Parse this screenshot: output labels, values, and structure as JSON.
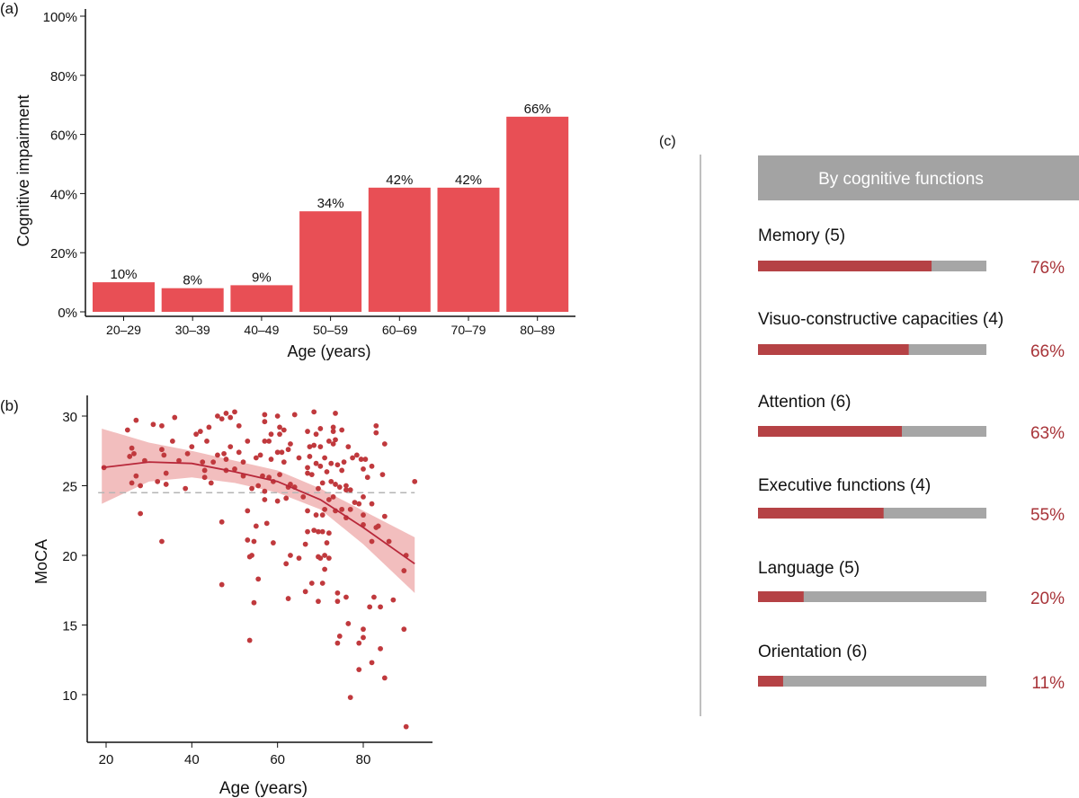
{
  "chart_data": [
    {
      "panel_label": "(a)",
      "type": "bar",
      "categories": [
        "20–29",
        "30–39",
        "40–49",
        "50–59",
        "60–69",
        "70–79",
        "80–89"
      ],
      "values": [
        10,
        8,
        9,
        34,
        42,
        42,
        66
      ],
      "data_labels": [
        "10%",
        "8%",
        "9%",
        "34%",
        "42%",
        "42%",
        "66%"
      ],
      "xlabel": "Age (years)",
      "ylabel": "Cognitive impairment",
      "ylim": [
        0,
        100
      ],
      "yticks": [
        "0%",
        "20%",
        "40%",
        "60%",
        "80%",
        "100%"
      ],
      "ytick_values": [
        0,
        20,
        40,
        60,
        80,
        100
      ],
      "grid": false,
      "color": "#e84f55"
    },
    {
      "panel_label": "(b)",
      "type": "scatter",
      "xlabel": "Age (years)",
      "ylabel": "MoCA",
      "xticks": [
        20,
        40,
        60,
        80
      ],
      "yticks": [
        10,
        15,
        20,
        25,
        30
      ],
      "xlim": [
        15,
        96
      ],
      "ylim": [
        7,
        31.5
      ],
      "grid": false,
      "color": "#c0393d",
      "cutoff_line": 24.5,
      "points": [
        [
          19.5,
          26.3
        ],
        [
          25,
          29
        ],
        [
          25.5,
          27.1
        ],
        [
          26,
          27.7
        ],
        [
          26,
          25.2
        ],
        [
          26.5,
          27.3
        ],
        [
          27,
          25.7
        ],
        [
          27,
          29.7
        ],
        [
          28,
          25
        ],
        [
          28,
          23
        ],
        [
          29,
          26.8
        ],
        [
          31,
          29.4
        ],
        [
          32,
          25.3
        ],
        [
          33,
          27.6
        ],
        [
          33,
          21
        ],
        [
          33,
          29.3
        ],
        [
          33.5,
          27.2
        ],
        [
          34,
          25.9
        ],
        [
          34,
          25.1
        ],
        [
          35.5,
          28.2
        ],
        [
          36,
          29.9
        ],
        [
          37,
          26.8
        ],
        [
          38.5,
          24.8
        ],
        [
          39,
          27.3
        ],
        [
          40,
          27.8
        ],
        [
          41,
          28.7
        ],
        [
          42,
          28.9
        ],
        [
          42.5,
          26.7
        ],
        [
          43,
          26.1
        ],
        [
          43,
          25.6
        ],
        [
          43.5,
          28.2
        ],
        [
          44,
          29.2
        ],
        [
          44.5,
          25.2
        ],
        [
          45,
          26.7
        ],
        [
          46,
          30
        ],
        [
          46,
          27.2
        ],
        [
          47,
          22.4
        ],
        [
          47,
          17.9
        ],
        [
          47,
          29.8
        ],
        [
          47.5,
          27.3
        ],
        [
          48,
          26.9
        ],
        [
          48,
          30.2
        ],
        [
          48,
          26.1
        ],
        [
          49,
          29.9
        ],
        [
          49,
          27.8
        ],
        [
          50,
          30.3
        ],
        [
          50,
          26.2
        ],
        [
          51,
          29.3
        ],
        [
          51,
          27.4
        ],
        [
          52,
          26.7
        ],
        [
          52,
          25.7
        ],
        [
          53,
          23.2
        ],
        [
          53,
          21.1
        ],
        [
          53,
          28.2
        ],
        [
          53.5,
          19.9
        ],
        [
          53.5,
          13.9
        ],
        [
          54,
          24.8
        ],
        [
          54,
          20
        ],
        [
          54.5,
          21
        ],
        [
          54.5,
          16.6
        ],
        [
          55,
          27
        ],
        [
          55,
          22.1
        ],
        [
          55.5,
          25
        ],
        [
          55.5,
          18.3
        ],
        [
          56,
          27.2
        ],
        [
          56.5,
          25.7
        ],
        [
          57,
          30.1
        ],
        [
          57,
          29.6
        ],
        [
          57,
          28.2
        ],
        [
          57,
          24.6
        ],
        [
          57,
          24
        ],
        [
          57.5,
          22.3
        ],
        [
          58,
          28.2
        ],
        [
          58,
          25.6
        ],
        [
          58.5,
          28.7
        ],
        [
          58.5,
          26.9
        ],
        [
          59,
          20.9
        ],
        [
          59,
          25.3
        ],
        [
          60,
          30
        ],
        [
          60,
          27.4
        ],
        [
          60.5,
          29.2
        ],
        [
          60.5,
          28.7
        ],
        [
          60,
          23.9
        ],
        [
          60.5,
          25.8
        ],
        [
          61,
          27.4
        ],
        [
          61.5,
          26.7
        ],
        [
          61.5,
          29
        ],
        [
          62,
          24.1
        ],
        [
          62,
          19.4
        ],
        [
          62.5,
          27.6
        ],
        [
          62.5,
          16.9
        ],
        [
          62.5,
          24.9
        ],
        [
          63,
          28
        ],
        [
          63,
          25.1
        ],
        [
          63,
          20
        ],
        [
          64,
          30.1
        ],
        [
          64,
          24.9
        ],
        [
          65,
          27
        ],
        [
          65,
          19.8
        ],
        [
          66,
          24.2
        ],
        [
          66.5,
          20.8
        ],
        [
          66.5,
          17.4
        ],
        [
          67,
          28.9
        ],
        [
          67,
          26.3
        ],
        [
          67,
          25.9
        ],
        [
          67,
          23.2
        ],
        [
          67,
          21.7
        ],
        [
          67.5,
          27.8
        ],
        [
          67.5,
          27.1
        ],
        [
          68,
          25.8
        ],
        [
          68,
          18
        ],
        [
          68.5,
          30.3
        ],
        [
          68.5,
          27.9
        ],
        [
          68.5,
          21.8
        ],
        [
          69,
          26.6
        ],
        [
          69,
          22.9
        ],
        [
          69,
          28.7
        ],
        [
          69.5,
          24.8
        ],
        [
          69.5,
          21.7
        ],
        [
          69.5,
          19.9
        ],
        [
          69.5,
          16.7
        ],
        [
          70,
          29.1
        ],
        [
          70,
          27.8
        ],
        [
          70,
          26.4
        ],
        [
          70,
          19.8
        ],
        [
          70.5,
          25.2
        ],
        [
          70.5,
          22.9
        ],
        [
          70.5,
          21.7
        ],
        [
          70.5,
          18
        ],
        [
          71,
          27
        ],
        [
          71,
          23.3
        ],
        [
          71,
          20
        ],
        [
          71,
          19
        ],
        [
          71.5,
          26
        ],
        [
          71.5,
          20.9
        ],
        [
          72,
          28.2
        ],
        [
          72,
          24
        ],
        [
          72,
          21.6
        ],
        [
          72,
          19.8
        ],
        [
          72.5,
          26.6
        ],
        [
          72.5,
          25.3
        ],
        [
          73,
          29.2
        ],
        [
          73,
          28.9
        ],
        [
          73,
          28
        ],
        [
          73,
          24.2
        ],
        [
          73.5,
          30.2
        ],
        [
          73.5,
          28.3
        ],
        [
          73.5,
          25.1
        ],
        [
          73.5,
          23.2
        ],
        [
          74,
          26.5
        ],
        [
          74,
          17.3
        ],
        [
          74,
          16.7
        ],
        [
          74,
          13.7
        ],
        [
          74.5,
          24.9
        ],
        [
          74.5,
          14.2
        ],
        [
          75,
          29
        ],
        [
          75,
          26.1
        ],
        [
          75,
          23.3
        ],
        [
          75.5,
          26.7
        ],
        [
          76,
          25
        ],
        [
          76,
          24.7
        ],
        [
          76,
          22.7
        ],
        [
          76,
          17
        ],
        [
          76.5,
          27.8
        ],
        [
          76.5,
          15.1
        ],
        [
          77,
          24.7
        ],
        [
          77,
          23.3
        ],
        [
          77,
          9.8
        ],
        [
          77.5,
          27
        ],
        [
          78,
          23.8
        ],
        [
          78.5,
          27.2
        ],
        [
          79,
          23.7
        ],
        [
          79,
          13.7
        ],
        [
          79,
          11.8
        ],
        [
          79.5,
          26.9
        ],
        [
          80,
          26.2
        ],
        [
          80,
          24.2
        ],
        [
          80,
          22.9
        ],
        [
          80,
          22.2
        ],
        [
          80,
          14.7
        ],
        [
          80,
          14.1
        ],
        [
          80.5,
          26.9
        ],
        [
          81,
          25.6
        ],
        [
          81.5,
          16.3
        ],
        [
          82,
          26.4
        ],
        [
          82,
          23.7
        ],
        [
          82,
          21
        ],
        [
          82,
          12.3
        ],
        [
          82.5,
          17
        ],
        [
          83,
          29.3
        ],
        [
          83,
          28.8
        ],
        [
          83,
          22
        ],
        [
          83.5,
          22.1
        ],
        [
          84,
          16.3
        ],
        [
          84,
          13.3
        ],
        [
          84.5,
          25.8
        ],
        [
          85,
          28
        ],
        [
          85,
          11.2
        ],
        [
          85,
          22.8
        ],
        [
          86,
          21
        ],
        [
          87,
          16.8
        ],
        [
          89.5,
          14.7
        ],
        [
          89.5,
          18.9
        ],
        [
          90,
          20
        ],
        [
          90,
          7.7
        ],
        [
          92,
          25.3
        ]
      ],
      "fit_line": [
        [
          19,
          26.3
        ],
        [
          30,
          26.7
        ],
        [
          40,
          26.6
        ],
        [
          50,
          26
        ],
        [
          60,
          25.3
        ],
        [
          70,
          24
        ],
        [
          80,
          22
        ],
        [
          92,
          19.4
        ]
      ],
      "fit_band": [
        [
          19,
          23.7,
          29.1
        ],
        [
          30,
          25.3,
          28.1
        ],
        [
          40,
          25.6,
          27.5
        ],
        [
          50,
          25.2,
          26.8
        ],
        [
          60,
          24.5,
          26.1
        ],
        [
          70,
          23.3,
          24.8
        ],
        [
          80,
          20.8,
          23.2
        ],
        [
          92,
          17.3,
          21.3
        ]
      ]
    },
    {
      "panel_label": "(c)",
      "type": "bar",
      "orientation": "horizontal",
      "title": "By cognitive functions",
      "categories": [
        "Memory (5)",
        "Visuo-constructive capacities (4)",
        "Attention (6)",
        "Executive functions (4)",
        "Language (5)",
        "Orientation (6)"
      ],
      "values": [
        76,
        66,
        63,
        55,
        20,
        11
      ],
      "data_labels": [
        "76%",
        "66%",
        "63%",
        "55%",
        "20%",
        "11%"
      ],
      "xlim": [
        0,
        100
      ],
      "colors": {
        "fill": "#b54245",
        "track": "#a6a6a6",
        "header": "#a3a3a3",
        "value_text": "#a83439"
      }
    }
  ]
}
